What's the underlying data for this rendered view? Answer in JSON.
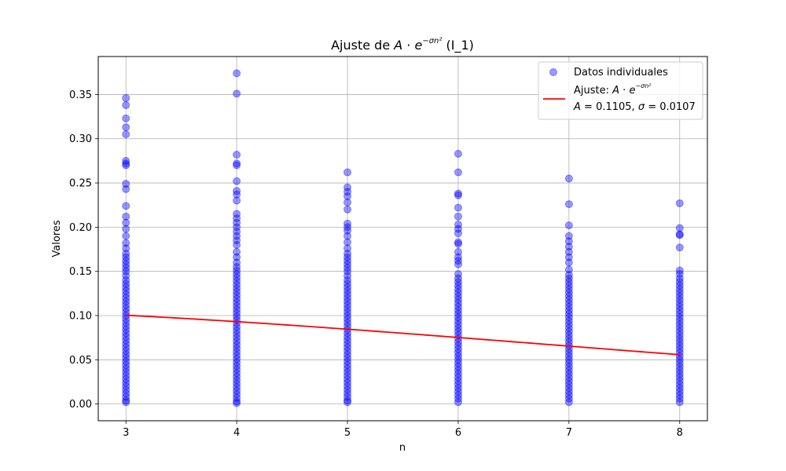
{
  "chart_data": {
    "type": "scatter",
    "title": "Ajuste de A·e^(−σn²) (I_1)",
    "title_parts": {
      "prefix": "Ajuste de ",
      "A": "A",
      "dot": " · ",
      "e": "e",
      "sup": "−σn²",
      "suffix": " (I_1)"
    },
    "xlabel": "n",
    "ylabel": "Valores",
    "xlim": [
      2.75,
      8.25
    ],
    "ylim": [
      -0.019,
      0.393
    ],
    "x_ticks": [
      3,
      4,
      5,
      6,
      7,
      8
    ],
    "y_ticks": [
      0.0,
      0.05,
      0.1,
      0.15,
      0.2,
      0.25,
      0.3,
      0.35
    ],
    "y_tick_labels": [
      "0.00",
      "0.05",
      "0.10",
      "0.15",
      "0.20",
      "0.25",
      "0.30",
      "0.35"
    ],
    "grid": true,
    "legend_position": "top-right",
    "series": [
      {
        "name": "Datos individuales",
        "kind": "scatter",
        "color": "#0000ff",
        "alpha": 0.4,
        "groups": [
          {
            "x": 3,
            "values": [
              0.346,
              0.338,
              0.323,
              0.313,
              0.305,
              0.275,
              0.272,
              0.27,
              0.249,
              0.243,
              0.224,
              0.212,
              0.205,
              0.198,
              0.19,
              0.182,
              0.176,
              0.17,
              0.166,
              0.162,
              0.158,
              0.154,
              0.15,
              0.145,
              0.14,
              0.136,
              0.132,
              0.128,
              0.124,
              0.12,
              0.116,
              0.112,
              0.108,
              0.104,
              0.1,
              0.096,
              0.092,
              0.088,
              0.084,
              0.08,
              0.076,
              0.072,
              0.068,
              0.064,
              0.06,
              0.056,
              0.052,
              0.048,
              0.044,
              0.04,
              0.036,
              0.032,
              0.028,
              0.024,
              0.02,
              0.016,
              0.012,
              0.008,
              0.004,
              0.002
            ]
          },
          {
            "x": 4,
            "values": [
              0.374,
              0.351,
              0.282,
              0.272,
              0.27,
              0.252,
              0.241,
              0.237,
              0.23,
              0.215,
              0.21,
              0.205,
              0.2,
              0.195,
              0.19,
              0.185,
              0.18,
              0.172,
              0.166,
              0.16,
              0.155,
              0.151,
              0.147,
              0.143,
              0.139,
              0.135,
              0.131,
              0.127,
              0.123,
              0.119,
              0.115,
              0.111,
              0.107,
              0.103,
              0.099,
              0.095,
              0.091,
              0.087,
              0.083,
              0.079,
              0.075,
              0.071,
              0.067,
              0.063,
              0.059,
              0.055,
              0.051,
              0.047,
              0.043,
              0.039,
              0.035,
              0.031,
              0.027,
              0.023,
              0.019,
              0.015,
              0.011,
              0.007,
              0.003,
              0.001
            ]
          },
          {
            "x": 5,
            "values": [
              0.262,
              0.245,
              0.24,
              0.235,
              0.228,
              0.22,
              0.204,
              0.2,
              0.196,
              0.19,
              0.183,
              0.176,
              0.17,
              0.166,
              0.162,
              0.158,
              0.154,
              0.15,
              0.145,
              0.14,
              0.136,
              0.132,
              0.128,
              0.124,
              0.12,
              0.116,
              0.112,
              0.108,
              0.104,
              0.1,
              0.096,
              0.092,
              0.088,
              0.084,
              0.08,
              0.076,
              0.072,
              0.068,
              0.064,
              0.06,
              0.056,
              0.052,
              0.048,
              0.044,
              0.04,
              0.036,
              0.032,
              0.028,
              0.024,
              0.02,
              0.016,
              0.012,
              0.008,
              0.004,
              0.002
            ]
          },
          {
            "x": 6,
            "values": [
              0.283,
              0.262,
              0.238,
              0.236,
              0.222,
              0.212,
              0.203,
              0.198,
              0.193,
              0.183,
              0.181,
              0.172,
              0.166,
              0.162,
              0.158,
              0.147,
              0.142,
              0.138,
              0.134,
              0.13,
              0.126,
              0.122,
              0.118,
              0.114,
              0.11,
              0.106,
              0.102,
              0.098,
              0.094,
              0.09,
              0.086,
              0.082,
              0.078,
              0.074,
              0.07,
              0.066,
              0.062,
              0.058,
              0.054,
              0.05,
              0.046,
              0.042,
              0.038,
              0.034,
              0.03,
              0.026,
              0.022,
              0.018,
              0.014,
              0.01,
              0.006,
              0.002
            ]
          },
          {
            "x": 7,
            "values": [
              0.255,
              0.226,
              0.202,
              0.19,
              0.184,
              0.178,
              0.172,
              0.166,
              0.16,
              0.152,
              0.146,
              0.142,
              0.138,
              0.134,
              0.13,
              0.126,
              0.122,
              0.118,
              0.114,
              0.11,
              0.106,
              0.102,
              0.098,
              0.094,
              0.09,
              0.086,
              0.082,
              0.078,
              0.074,
              0.07,
              0.066,
              0.062,
              0.058,
              0.054,
              0.05,
              0.046,
              0.042,
              0.038,
              0.034,
              0.03,
              0.026,
              0.022,
              0.018,
              0.014,
              0.01,
              0.006,
              0.002
            ]
          },
          {
            "x": 8,
            "values": [
              0.227,
              0.199,
              0.192,
              0.191,
              0.177,
              0.151,
              0.147,
              0.142,
              0.138,
              0.134,
              0.13,
              0.126,
              0.122,
              0.118,
              0.114,
              0.11,
              0.106,
              0.102,
              0.098,
              0.094,
              0.09,
              0.086,
              0.082,
              0.078,
              0.074,
              0.07,
              0.066,
              0.062,
              0.058,
              0.054,
              0.05,
              0.046,
              0.042,
              0.038,
              0.034,
              0.03,
              0.026,
              0.022,
              0.018,
              0.014,
              0.01,
              0.006,
              0.002
            ]
          }
        ]
      },
      {
        "name": "Ajuste: A·e^(−σn²)",
        "kind": "line",
        "color": "#ff0000",
        "A": 0.1105,
        "sigma": 0.0107,
        "x_range": [
          3,
          8
        ]
      }
    ],
    "legend": {
      "scatter_label": "Datos individuales",
      "fit_label_prefix": "Ajuste: ",
      "fit_formula": {
        "A": "A",
        "dot": " · ",
        "e": "e",
        "sup": "−σn²"
      },
      "params_text": {
        "A_sym": "A",
        "A_eq": " = 0.1105, ",
        "sigma_sym": "σ",
        "sigma_eq": " = 0.0107"
      }
    }
  }
}
